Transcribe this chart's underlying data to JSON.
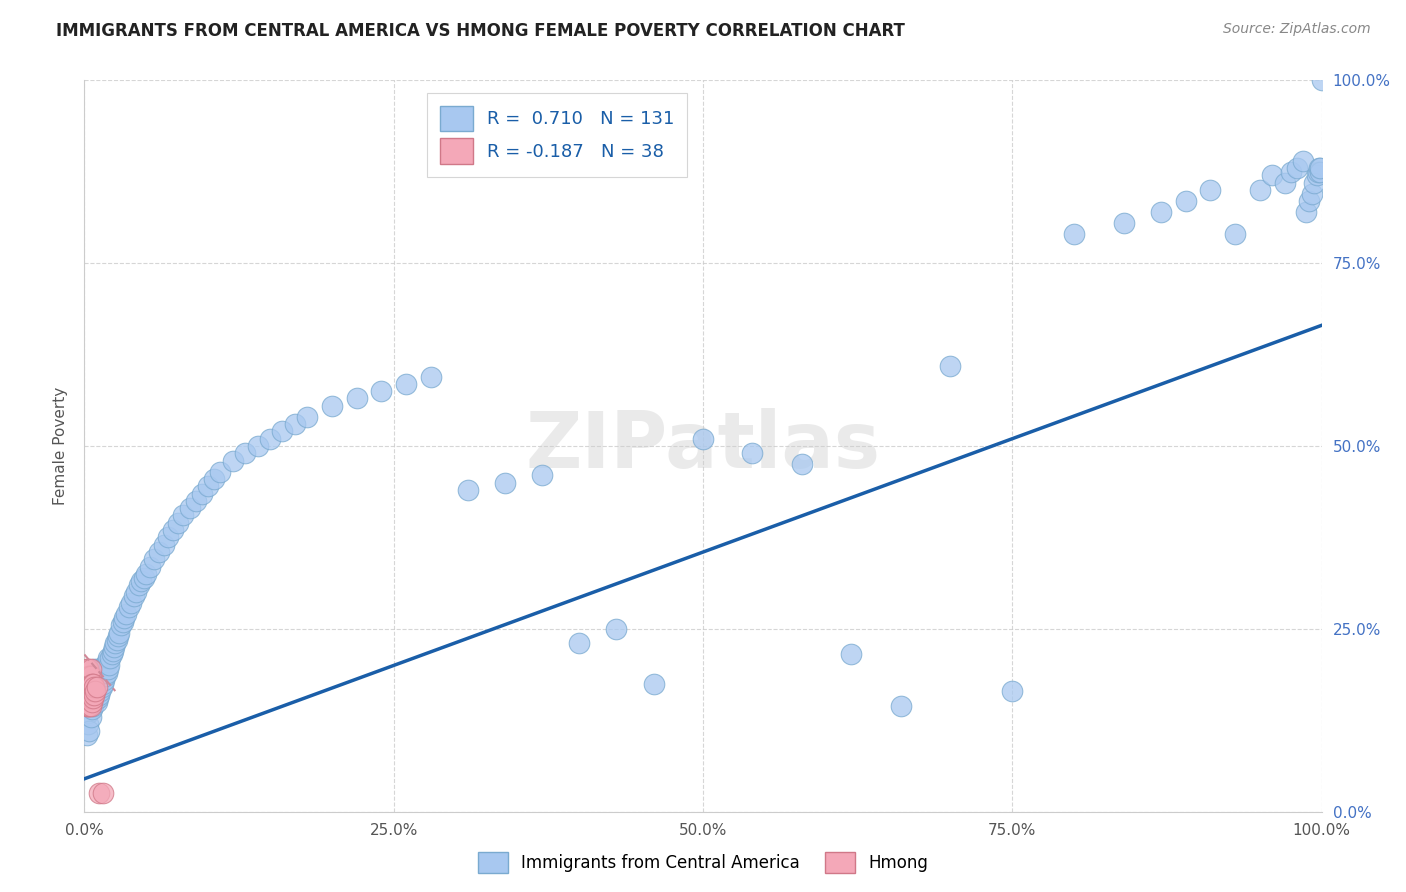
{
  "title": "IMMIGRANTS FROM CENTRAL AMERICA VS HMONG FEMALE POVERTY CORRELATION CHART",
  "source": "Source: ZipAtlas.com",
  "ylabel": "Female Poverty",
  "xlim": [
    0,
    1.0
  ],
  "ylim": [
    0,
    1.0
  ],
  "xtick_labels": [
    "0.0%",
    "25.0%",
    "50.0%",
    "75.0%",
    "100.0%"
  ],
  "xtick_vals": [
    0.0,
    0.25,
    0.5,
    0.75,
    1.0
  ],
  "ytick_labels_right": [
    "0.0%",
    "25.0%",
    "50.0%",
    "75.0%",
    "100.0%"
  ],
  "ytick_vals": [
    0.0,
    0.25,
    0.5,
    0.75,
    1.0
  ],
  "blue_R": 0.71,
  "blue_N": 131,
  "pink_R": -0.187,
  "pink_N": 38,
  "blue_color": "#A8C8F0",
  "pink_color": "#F4A8B8",
  "blue_edge_color": "#7AAAD0",
  "pink_edge_color": "#D07888",
  "blue_line_color": "#1A5EA8",
  "pink_line_color": "#D08898",
  "legend_blue_label": "Immigrants from Central America",
  "legend_pink_label": "Hmong",
  "watermark": "ZIPatlas",
  "blue_line_x0": 0.0,
  "blue_line_y0": 0.045,
  "blue_line_x1": 1.0,
  "blue_line_y1": 0.665,
  "pink_line_x0": 0.0,
  "pink_line_y0": 0.215,
  "pink_line_x1": 0.025,
  "pink_line_y1": 0.165,
  "blue_x": [
    0.002,
    0.003,
    0.003,
    0.004,
    0.004,
    0.004,
    0.005,
    0.005,
    0.005,
    0.005,
    0.006,
    0.006,
    0.006,
    0.006,
    0.007,
    0.007,
    0.007,
    0.007,
    0.008,
    0.008,
    0.008,
    0.008,
    0.009,
    0.009,
    0.009,
    0.01,
    0.01,
    0.01,
    0.01,
    0.011,
    0.011,
    0.011,
    0.012,
    0.012,
    0.012,
    0.013,
    0.013,
    0.014,
    0.014,
    0.015,
    0.015,
    0.016,
    0.016,
    0.017,
    0.017,
    0.018,
    0.018,
    0.019,
    0.019,
    0.02,
    0.021,
    0.022,
    0.023,
    0.024,
    0.025,
    0.026,
    0.027,
    0.028,
    0.03,
    0.031,
    0.032,
    0.034,
    0.036,
    0.038,
    0.04,
    0.042,
    0.044,
    0.046,
    0.048,
    0.05,
    0.053,
    0.056,
    0.06,
    0.064,
    0.068,
    0.072,
    0.076,
    0.08,
    0.085,
    0.09,
    0.095,
    0.1,
    0.105,
    0.11,
    0.12,
    0.13,
    0.14,
    0.15,
    0.16,
    0.17,
    0.18,
    0.2,
    0.22,
    0.24,
    0.26,
    0.28,
    0.31,
    0.34,
    0.37,
    0.4,
    0.43,
    0.46,
    0.5,
    0.54,
    0.58,
    0.62,
    0.66,
    0.7,
    0.75,
    0.8,
    0.84,
    0.87,
    0.89,
    0.91,
    0.93,
    0.95,
    0.96,
    0.97,
    0.975,
    0.98,
    0.985,
    0.987,
    0.99,
    0.992,
    0.994,
    0.996,
    0.997,
    0.998,
    0.999,
    0.999,
    1.0
  ],
  "blue_y": [
    0.105,
    0.12,
    0.135,
    0.11,
    0.15,
    0.165,
    0.13,
    0.145,
    0.16,
    0.175,
    0.14,
    0.155,
    0.17,
    0.185,
    0.145,
    0.16,
    0.175,
    0.19,
    0.15,
    0.165,
    0.18,
    0.195,
    0.155,
    0.17,
    0.185,
    0.15,
    0.165,
    0.18,
    0.195,
    0.155,
    0.175,
    0.19,
    0.16,
    0.175,
    0.19,
    0.165,
    0.18,
    0.17,
    0.185,
    0.175,
    0.19,
    0.18,
    0.195,
    0.185,
    0.2,
    0.19,
    0.205,
    0.195,
    0.21,
    0.2,
    0.21,
    0.215,
    0.22,
    0.225,
    0.23,
    0.235,
    0.24,
    0.245,
    0.255,
    0.26,
    0.265,
    0.27,
    0.28,
    0.285,
    0.295,
    0.3,
    0.31,
    0.315,
    0.32,
    0.325,
    0.335,
    0.345,
    0.355,
    0.365,
    0.375,
    0.385,
    0.395,
    0.405,
    0.415,
    0.425,
    0.435,
    0.445,
    0.455,
    0.465,
    0.48,
    0.49,
    0.5,
    0.51,
    0.52,
    0.53,
    0.54,
    0.555,
    0.565,
    0.575,
    0.585,
    0.595,
    0.44,
    0.45,
    0.46,
    0.23,
    0.25,
    0.175,
    0.51,
    0.49,
    0.475,
    0.215,
    0.145,
    0.61,
    0.165,
    0.79,
    0.805,
    0.82,
    0.835,
    0.85,
    0.79,
    0.85,
    0.87,
    0.86,
    0.875,
    0.88,
    0.89,
    0.82,
    0.835,
    0.845,
    0.86,
    0.87,
    0.875,
    0.88,
    0.875,
    0.88,
    1.0
  ],
  "pink_x": [
    0.001,
    0.001,
    0.001,
    0.002,
    0.002,
    0.002,
    0.002,
    0.002,
    0.002,
    0.003,
    0.003,
    0.003,
    0.003,
    0.003,
    0.003,
    0.004,
    0.004,
    0.004,
    0.004,
    0.004,
    0.005,
    0.005,
    0.005,
    0.005,
    0.005,
    0.005,
    0.006,
    0.006,
    0.006,
    0.007,
    0.007,
    0.007,
    0.008,
    0.008,
    0.009,
    0.01,
    0.012,
    0.015
  ],
  "pink_y": [
    0.155,
    0.165,
    0.175,
    0.145,
    0.155,
    0.165,
    0.175,
    0.185,
    0.195,
    0.145,
    0.155,
    0.165,
    0.175,
    0.185,
    0.195,
    0.145,
    0.155,
    0.165,
    0.175,
    0.185,
    0.145,
    0.155,
    0.165,
    0.175,
    0.185,
    0.195,
    0.15,
    0.16,
    0.175,
    0.155,
    0.165,
    0.175,
    0.16,
    0.17,
    0.165,
    0.17,
    0.025,
    0.025
  ]
}
